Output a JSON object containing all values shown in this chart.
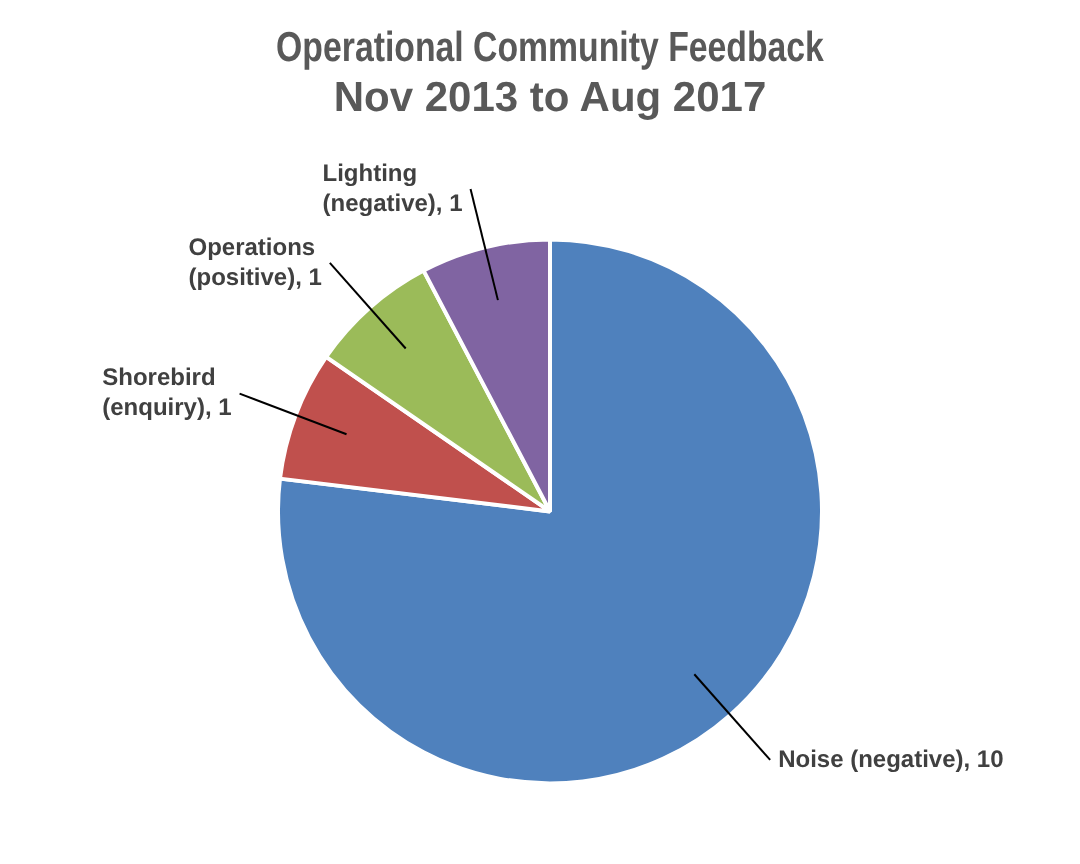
{
  "chart_data": {
    "type": "pie",
    "title": "Operational Community Feedback",
    "subtitle": "Nov 2013 to Aug 2017",
    "categories": [
      "Noise (negative)",
      "Shorebird (enquiry)",
      "Operations (positive)",
      "Lighting (negative)"
    ],
    "values": [
      10,
      1,
      1,
      1
    ],
    "colors": [
      "#4f81bd",
      "#c0504d",
      "#9bbb59",
      "#8064a2"
    ],
    "value_labels": [
      ", 10",
      ", 1",
      ", 1",
      ", 1"
    ],
    "legend": false
  }
}
